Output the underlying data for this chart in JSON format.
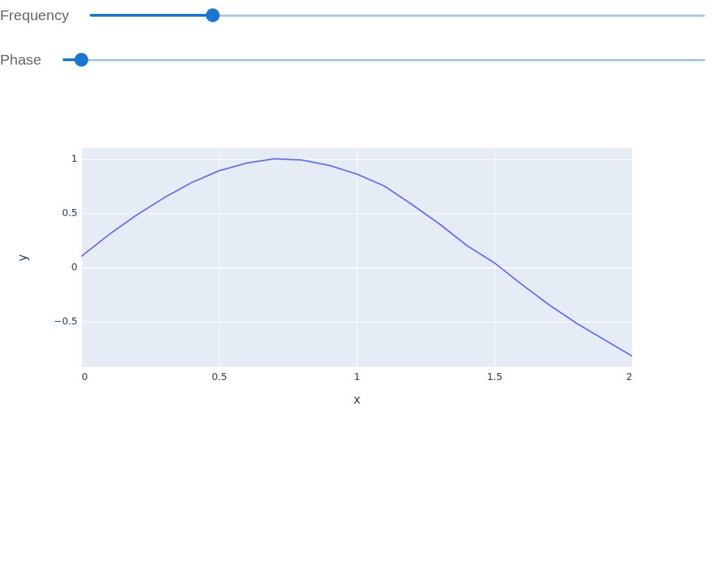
{
  "chart_data": {
    "type": "line",
    "xlabel": "x",
    "ylabel": "y",
    "annotations": [
      "Frequency",
      "Phase"
    ],
    "x": [
      0,
      0.1,
      0.2,
      0.3,
      0.4,
      0.5,
      0.6,
      0.7,
      0.8,
      0.9,
      1,
      1.1,
      1.2,
      1.3,
      1.4,
      1.5,
      1.6,
      1.7,
      1.8,
      1.9,
      2
    ],
    "series": [
      {
        "color": "#636efa",
        "values": [
          0.1,
          0.3,
          0.48,
          0.64,
          0.78,
          0.89,
          0.96,
          1.0,
          0.99,
          0.94,
          0.86,
          0.75,
          0.58,
          0.4,
          0.2,
          0.04,
          -0.16,
          -0.35,
          -0.52,
          -0.67,
          -0.82
        ]
      }
    ],
    "xlim": [
      0,
      2
    ],
    "ylim": [
      -0.92,
      1.1
    ],
    "xticks": [
      0,
      0.5,
      1,
      1.5,
      2
    ],
    "yticks": [
      {
        "value": -0.5,
        "label": "−0.5"
      },
      0,
      0.5,
      1
    ],
    "grid": true
  }
}
